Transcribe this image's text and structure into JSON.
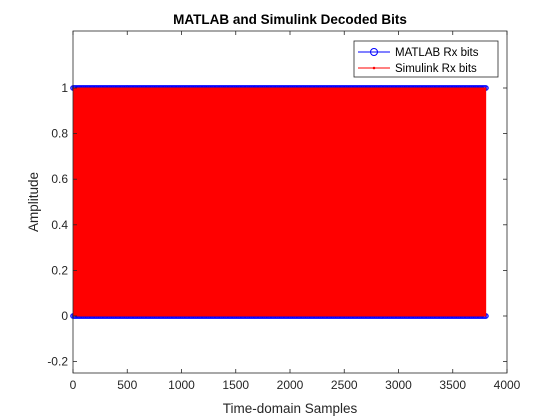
{
  "chart_data": {
    "type": "line",
    "title": "MATLAB and Simulink Decoded Bits",
    "xlabel": "Time-domain Samples",
    "ylabel": "Amplitude",
    "xlim": [
      0,
      4000
    ],
    "ylim": [
      -0.25,
      1.25
    ],
    "xticks": [
      0,
      500,
      1000,
      1500,
      2000,
      2500,
      3000,
      3500,
      4000
    ],
    "yticks": [
      -0.2,
      0,
      0.2,
      0.4,
      0.6,
      0.8,
      1
    ],
    "xtick_labels": [
      "0",
      "500",
      "1000",
      "1500",
      "2000",
      "2500",
      "3000",
      "3500",
      "4000"
    ],
    "ytick_labels": [
      "-0.2",
      "0",
      "0.2",
      "0.4",
      "0.6",
      "0.8",
      "1"
    ],
    "grid": false,
    "legend_position": "top-right",
    "sample_count": 3808,
    "series": [
      {
        "name": "MATLAB Rx bits",
        "color": "#0000ff",
        "marker": "circle",
        "levels": [
          0,
          1
        ],
        "x_range": [
          1,
          3808
        ]
      },
      {
        "name": "Simulink Rx bits",
        "color": "#ff0000",
        "marker": "point",
        "levels": [
          0,
          1
        ],
        "x_range": [
          1,
          3808
        ]
      }
    ]
  }
}
